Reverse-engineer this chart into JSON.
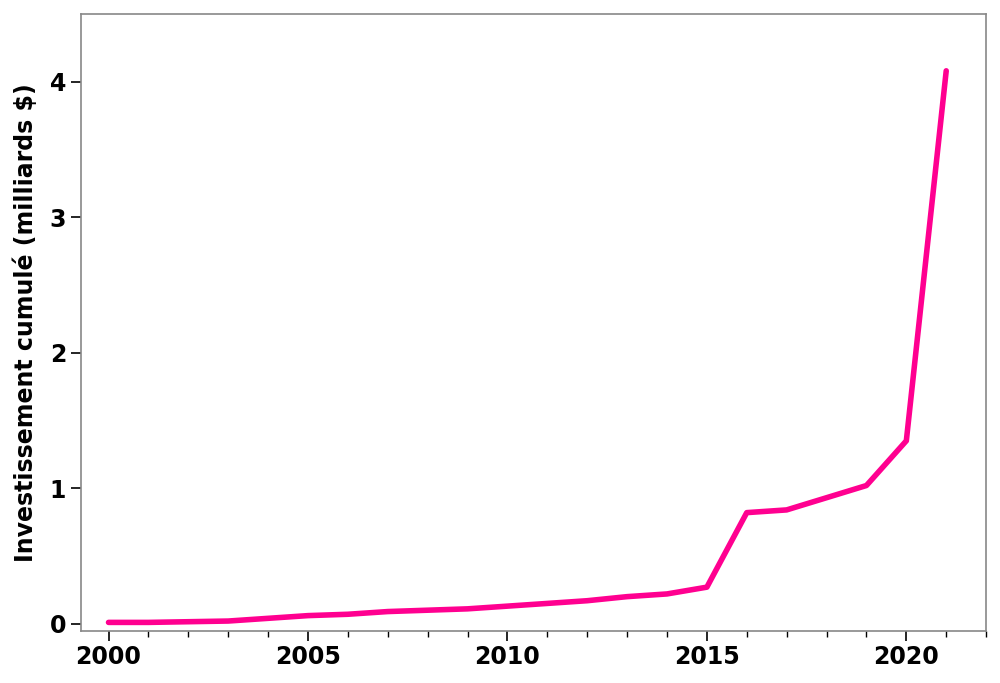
{
  "x": [
    2000,
    2001,
    2002,
    2003,
    2004,
    2005,
    2006,
    2007,
    2008,
    2009,
    2010,
    2011,
    2012,
    2013,
    2014,
    2015,
    2016,
    2017,
    2018,
    2019,
    2020,
    2021
  ],
  "y": [
    0.01,
    0.01,
    0.015,
    0.02,
    0.04,
    0.06,
    0.07,
    0.09,
    0.1,
    0.11,
    0.13,
    0.15,
    0.17,
    0.2,
    0.22,
    0.27,
    0.82,
    0.84,
    0.93,
    1.02,
    1.35,
    4.08
  ],
  "line_color": "#FF0090",
  "line_width": 4.0,
  "ylabel": "Investissement cumulé (milliards $)",
  "ylabel_fontsize": 17,
  "ylabel_fontweight": "bold",
  "tick_fontsize": 17,
  "tick_fontweight": "bold",
  "xlim": [
    1999.3,
    2022.0
  ],
  "ylim": [
    -0.05,
    4.5
  ],
  "yticks": [
    0,
    1,
    2,
    3,
    4
  ],
  "xticks": [
    2000,
    2005,
    2010,
    2015,
    2020
  ],
  "background_color": "#ffffff",
  "spine_color": "#888888",
  "figsize": [
    10.0,
    6.83
  ],
  "dpi": 100
}
